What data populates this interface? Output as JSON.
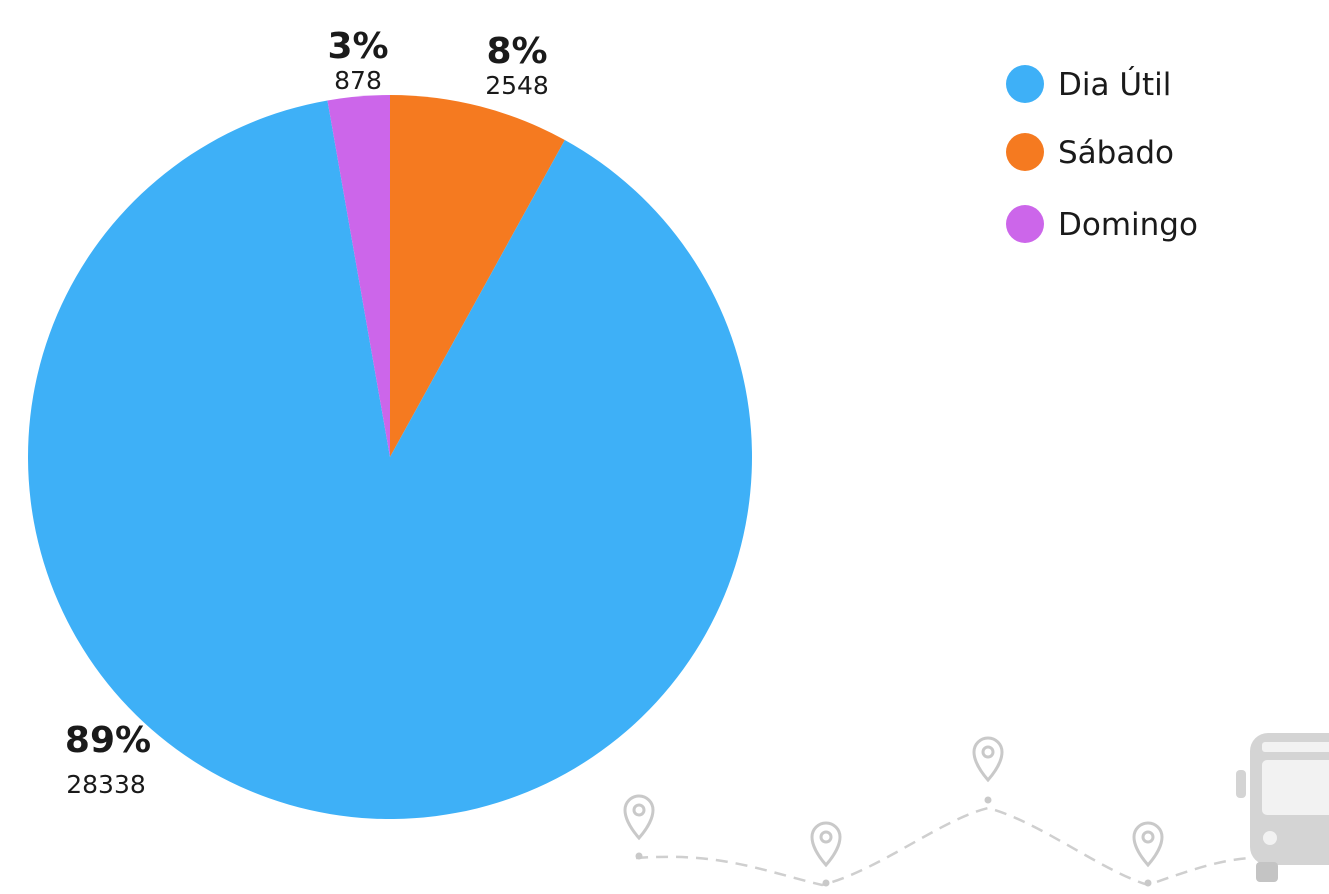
{
  "chart_data": {
    "type": "pie",
    "title": "",
    "slices": [
      {
        "name": "Dia Útil",
        "value": 28338,
        "percent_label": "89%",
        "value_label": "28338",
        "color": "#3eb0f7"
      },
      {
        "name": "Sábado",
        "value": 2548,
        "percent_label": "8%",
        "value_label": "2548",
        "color": "#f57a20"
      },
      {
        "name": "Domingo",
        "value": 878,
        "percent_label": "3%",
        "value_label": "878",
        "color": "#cc66ea"
      }
    ],
    "start_angle_deg": 0,
    "direction": "clockwise",
    "legend": {
      "placement": "top-right",
      "items": [
        "Dia Útil",
        "Sábado",
        "Domingo"
      ]
    }
  },
  "decoration": {
    "icons": [
      "location-pin-icon",
      "bus-icon"
    ]
  }
}
